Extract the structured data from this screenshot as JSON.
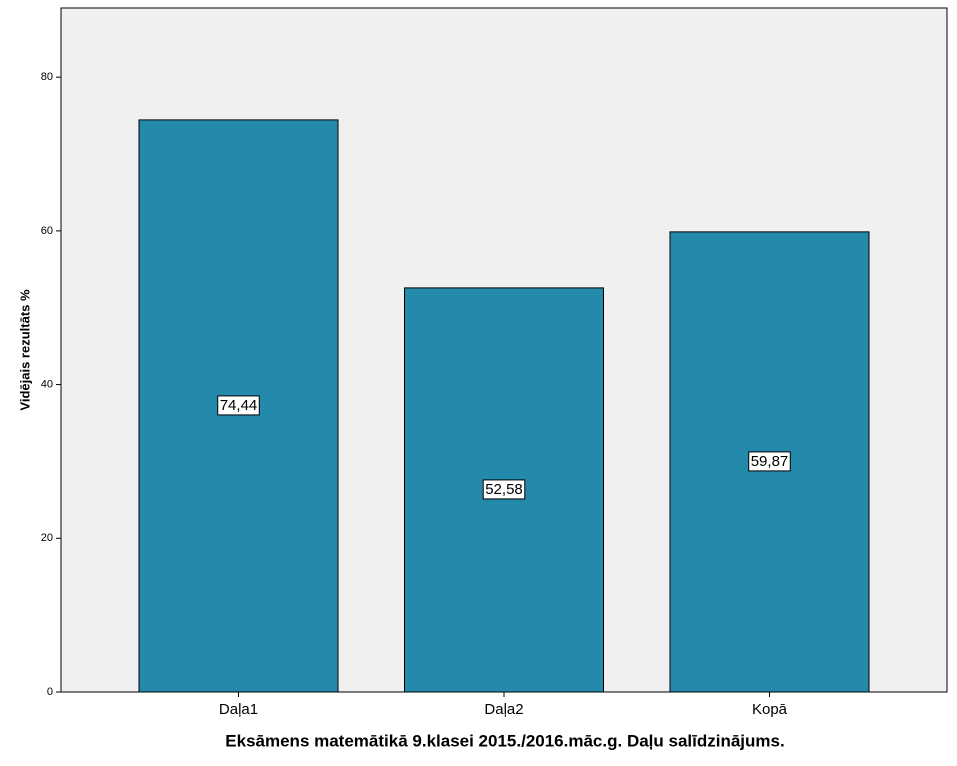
{
  "chart_data": {
    "type": "bar",
    "x_label": "Eksāmens matemātikā 9.klasei 2015./2016.māc.g. Daļu salīdzinājums.",
    "y_label": "Vidējais rezultāts %",
    "categories": [
      "Daļa1",
      "Daļa2",
      "Kopā"
    ],
    "values": [
      74.44,
      52.58,
      59.87
    ],
    "value_labels": [
      "74,44",
      "52,58",
      "59,87"
    ],
    "color": "#248aab",
    "ylim": [
      0,
      89
    ],
    "yticks": [
      0,
      20,
      40,
      60,
      80
    ],
    "grid": false
  }
}
